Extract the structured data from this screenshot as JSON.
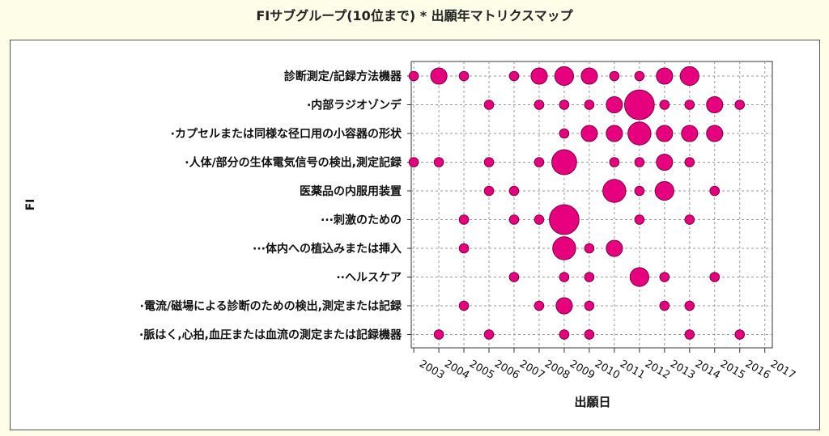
{
  "chart_data": {
    "type": "scatter",
    "title": "FIサブグループ(10位まで) * 出願年マトリクスマップ",
    "xlabel": "出願日",
    "ylabel": "FI",
    "x_ticks": [
      "2003",
      "2004",
      "2005",
      "2006",
      "2007",
      "2008",
      "2009",
      "2010",
      "2011",
      "2012",
      "2013",
      "2014",
      "2015",
      "2016",
      "2017"
    ],
    "categories": [
      "診断測定/記録方法機器",
      "·内部ラジオゾンデ",
      "·カプセルまたは同様な径口用の小容器の形状",
      "·人体/部分の生体電気信号の検出,測定記録",
      "医薬品の内服用装置",
      "···刺激のための",
      "···体内への植込みまたは挿入",
      "··ヘルスケア",
      "·電流/磁場による診断のための検出,測定または記録",
      "·脈はく,心拍,血圧または血流の測定または記録機器"
    ],
    "points": [
      {
        "cat": 0,
        "x": 2002,
        "size": 1
      },
      {
        "cat": 0,
        "x": 2003,
        "size": 3
      },
      {
        "cat": 0,
        "x": 2004,
        "size": 1
      },
      {
        "cat": 0,
        "x": 2006,
        "size": 1
      },
      {
        "cat": 0,
        "x": 2007,
        "size": 3
      },
      {
        "cat": 0,
        "x": 2008,
        "size": 4
      },
      {
        "cat": 0,
        "x": 2009,
        "size": 3
      },
      {
        "cat": 0,
        "x": 2010,
        "size": 1
      },
      {
        "cat": 0,
        "x": 2011,
        "size": 1
      },
      {
        "cat": 0,
        "x": 2012,
        "size": 3
      },
      {
        "cat": 0,
        "x": 2013,
        "size": 4
      },
      {
        "cat": 1,
        "x": 2005,
        "size": 1
      },
      {
        "cat": 1,
        "x": 2007,
        "size": 1
      },
      {
        "cat": 1,
        "x": 2008,
        "size": 1
      },
      {
        "cat": 1,
        "x": 2009,
        "size": 1
      },
      {
        "cat": 1,
        "x": 2010,
        "size": 3
      },
      {
        "cat": 1,
        "x": 2011,
        "size": 10
      },
      {
        "cat": 1,
        "x": 2012,
        "size": 1
      },
      {
        "cat": 1,
        "x": 2013,
        "size": 1
      },
      {
        "cat": 1,
        "x": 2014,
        "size": 3
      },
      {
        "cat": 1,
        "x": 2015,
        "size": 1
      },
      {
        "cat": 2,
        "x": 2008,
        "size": 1
      },
      {
        "cat": 2,
        "x": 2009,
        "size": 3
      },
      {
        "cat": 2,
        "x": 2010,
        "size": 3
      },
      {
        "cat": 2,
        "x": 2011,
        "size": 6
      },
      {
        "cat": 2,
        "x": 2012,
        "size": 3
      },
      {
        "cat": 2,
        "x": 2013,
        "size": 3
      },
      {
        "cat": 2,
        "x": 2014,
        "size": 3
      },
      {
        "cat": 3,
        "x": 2002,
        "size": 1
      },
      {
        "cat": 3,
        "x": 2003,
        "size": 1
      },
      {
        "cat": 3,
        "x": 2005,
        "size": 1
      },
      {
        "cat": 3,
        "x": 2007,
        "size": 1
      },
      {
        "cat": 3,
        "x": 2008,
        "size": 7
      },
      {
        "cat": 3,
        "x": 2010,
        "size": 1
      },
      {
        "cat": 3,
        "x": 2011,
        "size": 1
      },
      {
        "cat": 3,
        "x": 2012,
        "size": 3
      },
      {
        "cat": 3,
        "x": 2013,
        "size": 1
      },
      {
        "cat": 4,
        "x": 2005,
        "size": 1
      },
      {
        "cat": 4,
        "x": 2006,
        "size": 1
      },
      {
        "cat": 4,
        "x": 2010,
        "size": 6
      },
      {
        "cat": 4,
        "x": 2011,
        "size": 1
      },
      {
        "cat": 4,
        "x": 2012,
        "size": 4
      },
      {
        "cat": 4,
        "x": 2014,
        "size": 1
      },
      {
        "cat": 5,
        "x": 2004,
        "size": 1
      },
      {
        "cat": 5,
        "x": 2006,
        "size": 1
      },
      {
        "cat": 5,
        "x": 2007,
        "size": 1
      },
      {
        "cat": 5,
        "x": 2008,
        "size": 10
      },
      {
        "cat": 5,
        "x": 2011,
        "size": 1
      },
      {
        "cat": 5,
        "x": 2013,
        "size": 1
      },
      {
        "cat": 6,
        "x": 2004,
        "size": 1
      },
      {
        "cat": 6,
        "x": 2008,
        "size": 6
      },
      {
        "cat": 6,
        "x": 2009,
        "size": 1
      },
      {
        "cat": 6,
        "x": 2010,
        "size": 3
      },
      {
        "cat": 7,
        "x": 2006,
        "size": 1
      },
      {
        "cat": 7,
        "x": 2008,
        "size": 1
      },
      {
        "cat": 7,
        "x": 2009,
        "size": 1
      },
      {
        "cat": 7,
        "x": 2011,
        "size": 4
      },
      {
        "cat": 7,
        "x": 2012,
        "size": 1
      },
      {
        "cat": 7,
        "x": 2014,
        "size": 1
      },
      {
        "cat": 8,
        "x": 2004,
        "size": 1
      },
      {
        "cat": 8,
        "x": 2007,
        "size": 1
      },
      {
        "cat": 8,
        "x": 2008,
        "size": 3
      },
      {
        "cat": 8,
        "x": 2009,
        "size": 1
      },
      {
        "cat": 8,
        "x": 2012,
        "size": 1
      },
      {
        "cat": 8,
        "x": 2013,
        "size": 1
      },
      {
        "cat": 9,
        "x": 2003,
        "size": 1
      },
      {
        "cat": 9,
        "x": 2005,
        "size": 1
      },
      {
        "cat": 9,
        "x": 2008,
        "size": 1
      },
      {
        "cat": 9,
        "x": 2009,
        "size": 1
      },
      {
        "cat": 9,
        "x": 2013,
        "size": 1
      },
      {
        "cat": 9,
        "x": 2015,
        "size": 1
      }
    ],
    "xlim": [
      2001.9,
      2016.3
    ],
    "grid": true,
    "colors": {
      "marker": "#e6007e",
      "marker_edge": "#7a0040",
      "grid": "#9a9a9a"
    }
  }
}
